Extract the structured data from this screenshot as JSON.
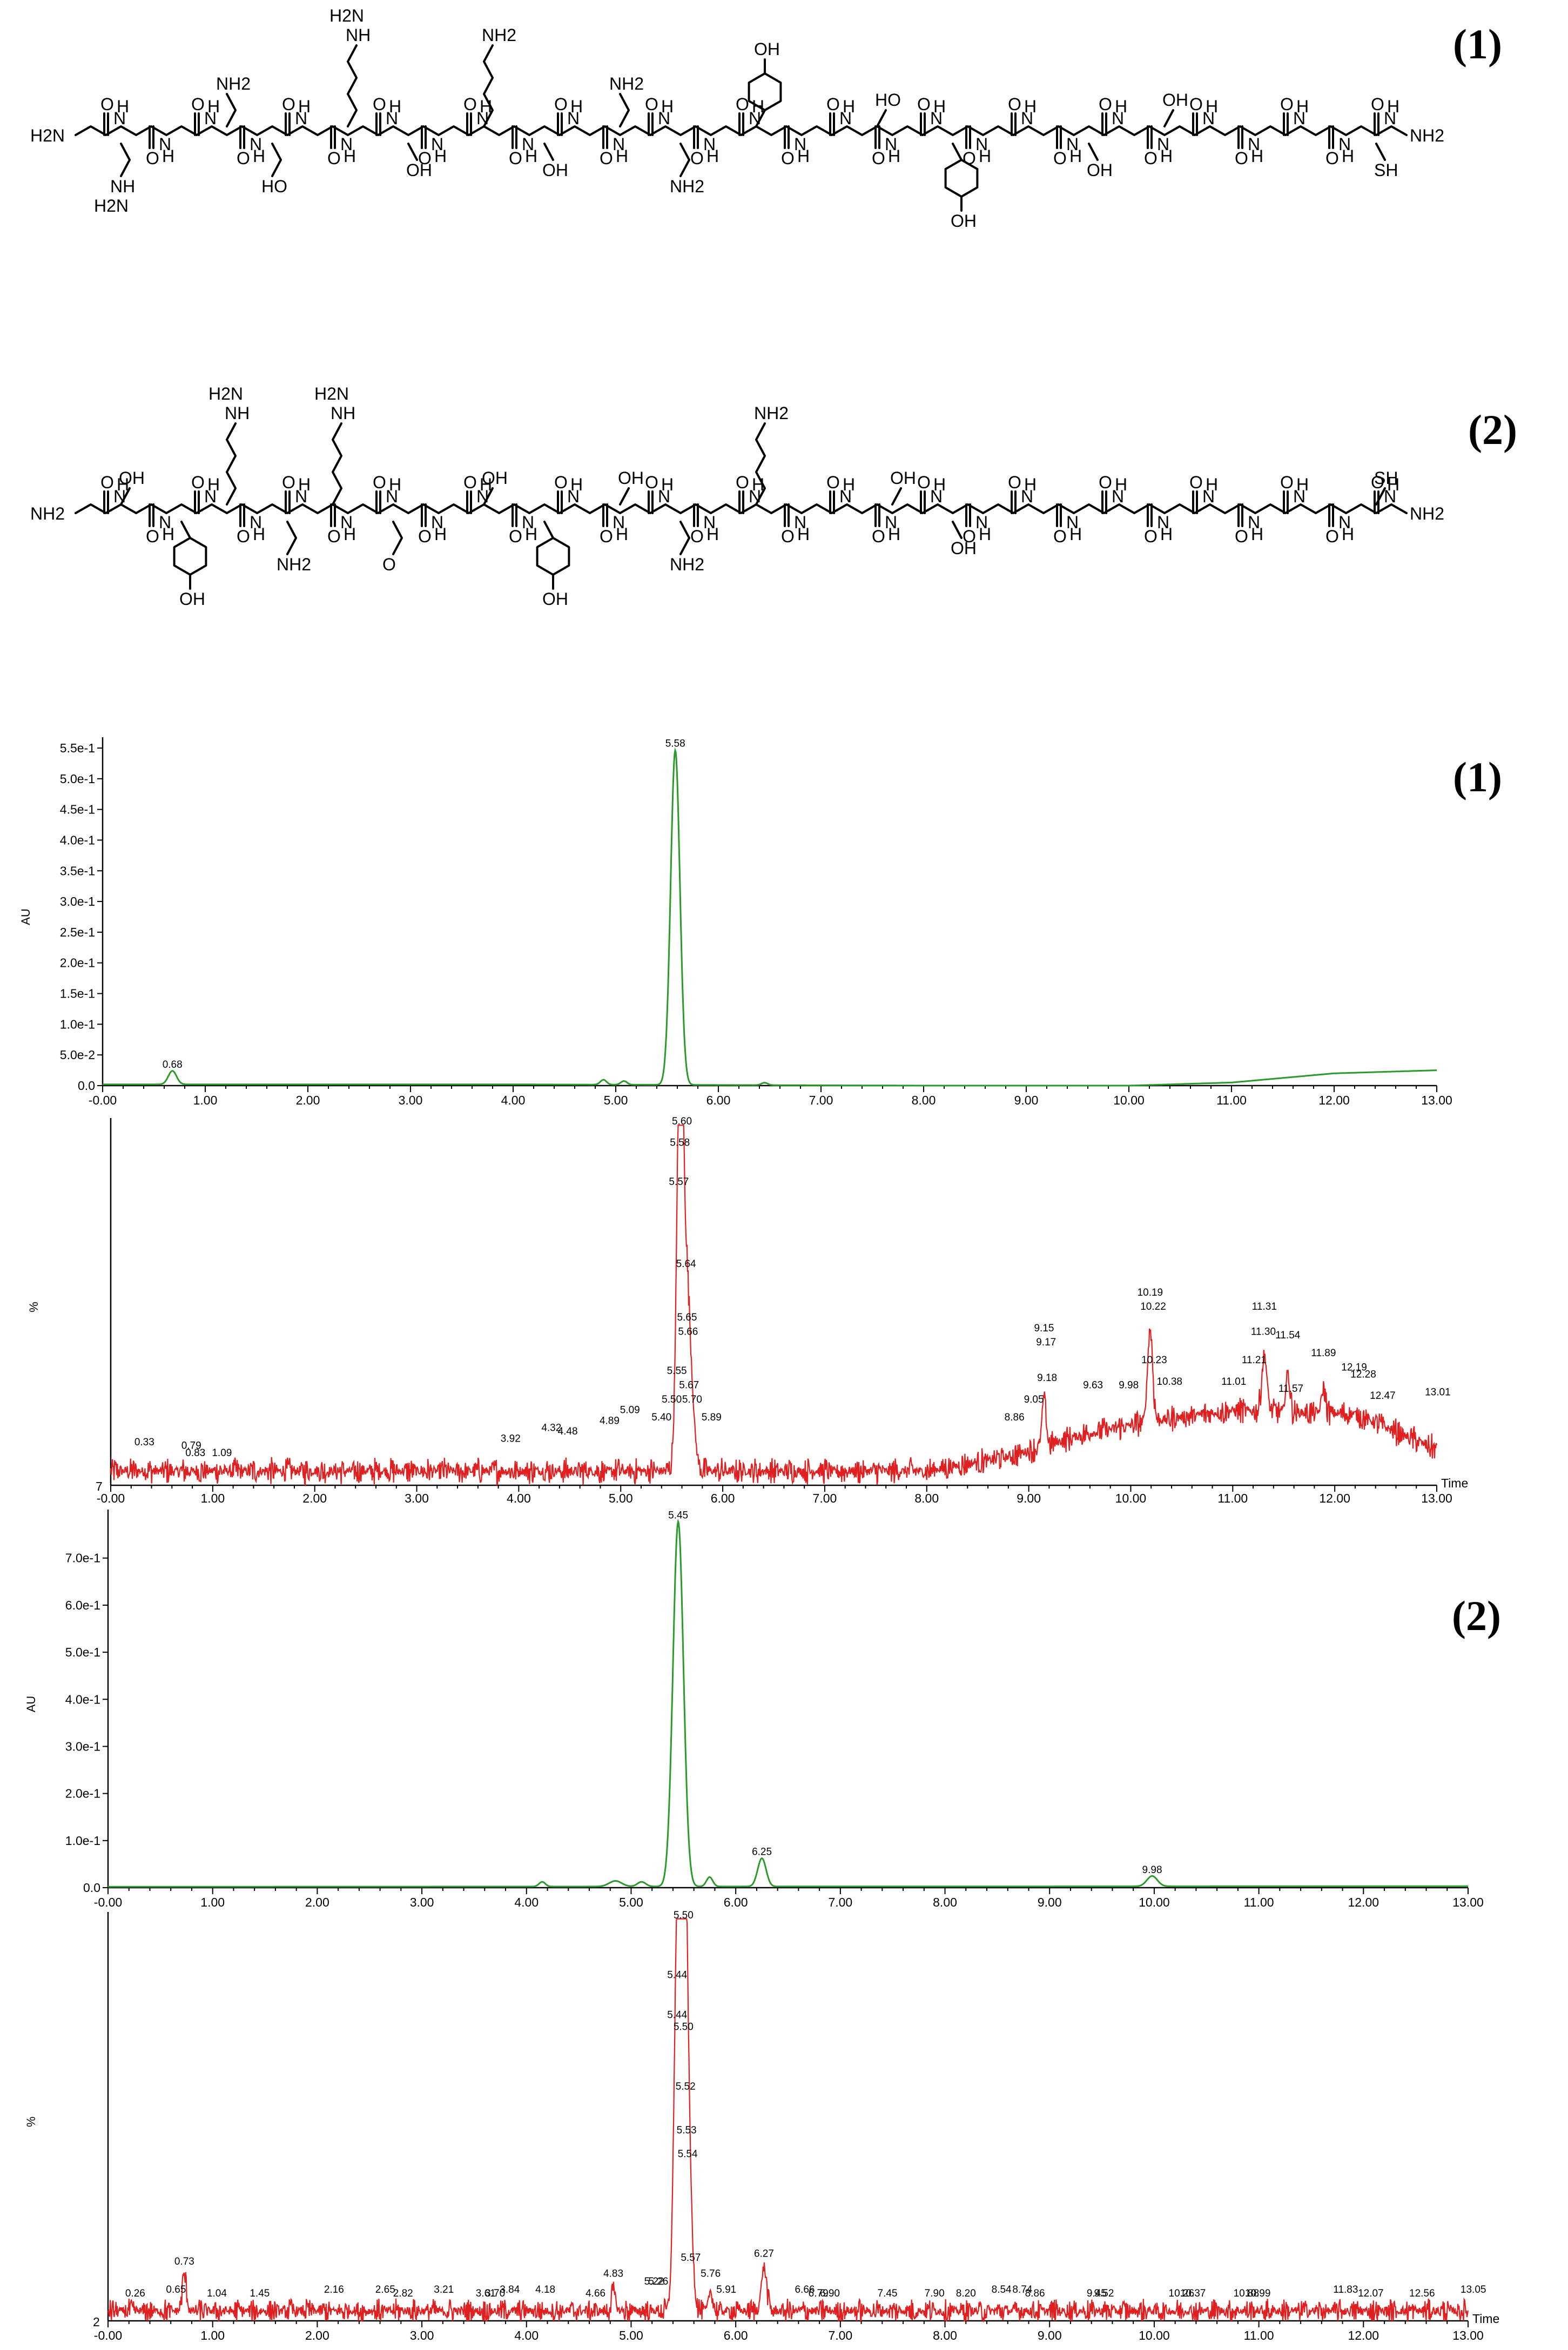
{
  "structures": {
    "label_1": "(1)",
    "label_2": "(2)",
    "atoms": [
      "H2N",
      "NH",
      "HN",
      "NH2",
      "O",
      "OH",
      "HO",
      "SH",
      "H",
      "N"
    ]
  },
  "chart_data": [
    {
      "id": "uv1",
      "type": "line",
      "panel_label": "(1)",
      "color": "#2a9a2a",
      "title": "",
      "xlabel": "",
      "ylabel": "AU",
      "xlim": [
        0,
        13
      ],
      "ylim": [
        0,
        0.55
      ],
      "xticks": [
        "-0.00",
        "1.00",
        "2.00",
        "3.00",
        "4.00",
        "5.00",
        "6.00",
        "7.00",
        "8.00",
        "9.00",
        "10.00",
        "11.00",
        "12.00",
        "13.00"
      ],
      "yticks": [
        "0.0",
        "5.0e-2",
        "1.0e-1",
        "1.5e-1",
        "2.0e-1",
        "2.5e-1",
        "3.0e-1",
        "3.5e-1",
        "4.0e-1",
        "4.5e-1",
        "5.0e-1",
        "5.5e-1"
      ],
      "baseline": [
        [
          0,
          0.002
        ],
        [
          4,
          0.002
        ],
        [
          8,
          0.0
        ],
        [
          10,
          0.0
        ],
        [
          11,
          0.005
        ],
        [
          12,
          0.02
        ],
        [
          13,
          0.025
        ]
      ],
      "peaks": [
        {
          "x": 0.68,
          "y": 0.022,
          "w": 0.04,
          "label": "0.68"
        },
        {
          "x": 4.88,
          "y": 0.008,
          "w": 0.03
        },
        {
          "x": 5.08,
          "y": 0.006,
          "w": 0.03
        },
        {
          "x": 5.58,
          "y": 0.545,
          "w": 0.045,
          "label": "5.58"
        },
        {
          "x": 6.45,
          "y": 0.004,
          "w": 0.03
        }
      ]
    },
    {
      "id": "ms1",
      "type": "line",
      "color": "#e02020",
      "title": "",
      "xlabel": "Time",
      "ylabel": "%",
      "ymin_label": "7",
      "xlim": [
        0,
        13
      ],
      "ylim": [
        0,
        100
      ],
      "xticks": [
        "-0.00",
        "1.00",
        "2.00",
        "3.00",
        "4.00",
        "5.00",
        "6.00",
        "7.00",
        "8.00",
        "9.00",
        "10.00",
        "11.00",
        "12.00",
        "13.00"
      ],
      "noise": 2.5,
      "baseline": [
        [
          0,
          4
        ],
        [
          5,
          4
        ],
        [
          6,
          4
        ],
        [
          8,
          4
        ],
        [
          8.8,
          8
        ],
        [
          9.5,
          14
        ],
        [
          10.2,
          18
        ],
        [
          11,
          21
        ],
        [
          12.2,
          20
        ],
        [
          13,
          10
        ]
      ],
      "peaks": [
        {
          "x": 5.58,
          "y": 100,
          "w": 0.03
        },
        {
          "x": 5.64,
          "y": 55,
          "w": 0.05
        },
        {
          "x": 9.15,
          "y": 14,
          "w": 0.02
        },
        {
          "x": 10.19,
          "y": 26,
          "w": 0.025
        },
        {
          "x": 11.31,
          "y": 16,
          "w": 0.025
        },
        {
          "x": 11.54,
          "y": 11,
          "w": 0.02
        },
        {
          "x": 11.89,
          "y": 7,
          "w": 0.02
        }
      ],
      "labels": [
        {
          "x": 5.6,
          "y": 100,
          "text": "5.60"
        },
        {
          "x": 5.58,
          "y": 94,
          "text": "5.58"
        },
        {
          "x": 5.57,
          "y": 83,
          "text": "5.57"
        },
        {
          "x": 5.64,
          "y": 60,
          "text": "5.64"
        },
        {
          "x": 5.65,
          "y": 45,
          "text": "5.65"
        },
        {
          "x": 5.66,
          "y": 41,
          "text": "5.66"
        },
        {
          "x": 5.55,
          "y": 30,
          "text": "5.55"
        },
        {
          "x": 5.67,
          "y": 26,
          "text": "5.67"
        },
        {
          "x": 5.5,
          "y": 22,
          "text": "5.50"
        },
        {
          "x": 5.7,
          "y": 22,
          "text": "5.70"
        },
        {
          "x": 5.89,
          "y": 17,
          "text": "5.89"
        },
        {
          "x": 5.4,
          "y": 17,
          "text": "5.40"
        },
        {
          "x": 5.09,
          "y": 19,
          "text": "5.09"
        },
        {
          "x": 4.89,
          "y": 16,
          "text": "4.89"
        },
        {
          "x": 4.48,
          "y": 13,
          "text": "4.48"
        },
        {
          "x": 4.32,
          "y": 14,
          "text": "4.32"
        },
        {
          "x": 3.92,
          "y": 11,
          "text": "3.92"
        },
        {
          "x": 0.33,
          "y": 10,
          "text": "0.33"
        },
        {
          "x": 0.79,
          "y": 9,
          "text": "0.79"
        },
        {
          "x": 0.83,
          "y": 7,
          "text": "0.83"
        },
        {
          "x": 1.09,
          "y": 7,
          "text": "1.09"
        },
        {
          "x": 8.86,
          "y": 17,
          "text": "8.86"
        },
        {
          "x": 9.05,
          "y": 22,
          "text": "9.05"
        },
        {
          "x": 9.15,
          "y": 42,
          "text": "9.15"
        },
        {
          "x": 9.17,
          "y": 38,
          "text": "9.17"
        },
        {
          "x": 9.18,
          "y": 28,
          "text": "9.18"
        },
        {
          "x": 9.63,
          "y": 26,
          "text": "9.63"
        },
        {
          "x": 9.98,
          "y": 26,
          "text": "9.98"
        },
        {
          "x": 10.19,
          "y": 52,
          "text": "10.19"
        },
        {
          "x": 10.22,
          "y": 48,
          "text": "10.22"
        },
        {
          "x": 10.23,
          "y": 33,
          "text": "10.23"
        },
        {
          "x": 10.38,
          "y": 27,
          "text": "10.38"
        },
        {
          "x": 11.01,
          "y": 27,
          "text": "11.01"
        },
        {
          "x": 11.21,
          "y": 33,
          "text": "11.21"
        },
        {
          "x": 11.3,
          "y": 41,
          "text": "11.30"
        },
        {
          "x": 11.31,
          "y": 48,
          "text": "11.31"
        },
        {
          "x": 11.54,
          "y": 40,
          "text": "11.54"
        },
        {
          "x": 11.57,
          "y": 25,
          "text": "11.57"
        },
        {
          "x": 11.89,
          "y": 35,
          "text": "11.89"
        },
        {
          "x": 12.19,
          "y": 31,
          "text": "12.19"
        },
        {
          "x": 12.28,
          "y": 29,
          "text": "12.28"
        },
        {
          "x": 12.47,
          "y": 23,
          "text": "12.47"
        },
        {
          "x": 13.01,
          "y": 24,
          "text": "13.01"
        }
      ]
    },
    {
      "id": "uv2",
      "type": "line",
      "panel_label": "(2)",
      "color": "#2a9a2a",
      "title": "",
      "xlabel": "",
      "ylabel": "AU",
      "xlim": [
        0,
        13
      ],
      "ylim": [
        0,
        0.78
      ],
      "xticks": [
        "-0.00",
        "1.00",
        "2.00",
        "3.00",
        "4.00",
        "5.00",
        "6.00",
        "7.00",
        "8.00",
        "9.00",
        "10.00",
        "11.00",
        "12.00",
        "13.00"
      ],
      "yticks": [
        "0.0",
        "1.0e-1",
        "2.0e-1",
        "3.0e-1",
        "4.0e-1",
        "5.0e-1",
        "6.0e-1",
        "7.0e-1"
      ],
      "baseline": [
        [
          0,
          0.002
        ],
        [
          13,
          0.003
        ]
      ],
      "peaks": [
        {
          "x": 4.15,
          "y": 0.01,
          "w": 0.03
        },
        {
          "x": 4.85,
          "y": 0.012,
          "w": 0.06
        },
        {
          "x": 5.1,
          "y": 0.01,
          "w": 0.04
        },
        {
          "x": 5.45,
          "y": 0.775,
          "w": 0.05,
          "label": "5.45"
        },
        {
          "x": 5.75,
          "y": 0.02,
          "w": 0.03
        },
        {
          "x": 6.25,
          "y": 0.06,
          "w": 0.04,
          "label": "6.25"
        },
        {
          "x": 9.98,
          "y": 0.022,
          "w": 0.05,
          "label": "9.98"
        }
      ]
    },
    {
      "id": "ms2",
      "type": "line",
      "color": "#e02020",
      "title": "",
      "xlabel": "Time",
      "ylabel": "%",
      "ymin_label": "2",
      "xlim": [
        0,
        13
      ],
      "ylim": [
        0,
        100
      ],
      "xticks": [
        "-0.00",
        "1.00",
        "2.00",
        "3.00",
        "4.00",
        "5.00",
        "6.00",
        "7.00",
        "8.00",
        "9.00",
        "10.00",
        "11.00",
        "12.00",
        "13.00"
      ],
      "noise": 2.0,
      "baseline": [
        [
          0,
          2.5
        ],
        [
          13,
          2.5
        ]
      ],
      "peaks": [
        {
          "x": 0.73,
          "y": 9,
          "w": 0.02
        },
        {
          "x": 4.83,
          "y": 5,
          "w": 0.02
        },
        {
          "x": 5.44,
          "y": 90,
          "w": 0.03
        },
        {
          "x": 5.5,
          "y": 95,
          "w": 0.03
        },
        {
          "x": 5.53,
          "y": 50,
          "w": 0.04
        },
        {
          "x": 5.76,
          "y": 5,
          "w": 0.02
        },
        {
          "x": 6.27,
          "y": 11,
          "w": 0.025
        }
      ],
      "labels": [
        {
          "x": 5.5,
          "y": 100,
          "text": "5.50"
        },
        {
          "x": 5.44,
          "y": 85,
          "text": "5.44"
        },
        {
          "x": 5.44,
          "y": 75,
          "text": "5.44"
        },
        {
          "x": 5.5,
          "y": 72,
          "text": "5.50"
        },
        {
          "x": 5.52,
          "y": 57,
          "text": "5.52"
        },
        {
          "x": 5.53,
          "y": 46,
          "text": "5.53"
        },
        {
          "x": 5.54,
          "y": 40,
          "text": "5.54"
        },
        {
          "x": 5.57,
          "y": 14,
          "text": "5.57"
        },
        {
          "x": 5.76,
          "y": 10,
          "text": "5.76"
        },
        {
          "x": 5.91,
          "y": 6,
          "text": "5.91"
        },
        {
          "x": 6.27,
          "y": 15,
          "text": "6.27"
        },
        {
          "x": 6.66,
          "y": 6,
          "text": "6.66"
        },
        {
          "x": 6.79,
          "y": 5,
          "text": "6.79"
        },
        {
          "x": 6.9,
          "y": 5,
          "text": "6.90"
        },
        {
          "x": 7.45,
          "y": 5,
          "text": "7.45"
        },
        {
          "x": 7.9,
          "y": 5,
          "text": "7.90"
        },
        {
          "x": 8.2,
          "y": 5,
          "text": "8.20"
        },
        {
          "x": 8.54,
          "y": 6,
          "text": "8.54"
        },
        {
          "x": 8.74,
          "y": 6,
          "text": "8.74"
        },
        {
          "x": 8.86,
          "y": 5,
          "text": "8.86"
        },
        {
          "x": 9.45,
          "y": 5,
          "text": "9.45"
        },
        {
          "x": 9.52,
          "y": 5,
          "text": "9.52"
        },
        {
          "x": 10.26,
          "y": 5,
          "text": "10.26"
        },
        {
          "x": 10.37,
          "y": 5,
          "text": "10.37"
        },
        {
          "x": 10.88,
          "y": 5,
          "text": "10.88"
        },
        {
          "x": 10.99,
          "y": 5,
          "text": "10.99"
        },
        {
          "x": 11.83,
          "y": 6,
          "text": "11.83"
        },
        {
          "x": 12.07,
          "y": 5,
          "text": "12.07"
        },
        {
          "x": 12.56,
          "y": 5,
          "text": "12.56"
        },
        {
          "x": 13.05,
          "y": 6,
          "text": "13.05"
        },
        {
          "x": 0.26,
          "y": 5,
          "text": "0.26"
        },
        {
          "x": 0.65,
          "y": 6,
          "text": "0.65"
        },
        {
          "x": 0.73,
          "y": 13,
          "text": "0.73"
        },
        {
          "x": 1.04,
          "y": 5,
          "text": "1.04"
        },
        {
          "x": 1.45,
          "y": 5,
          "text": "1.45"
        },
        {
          "x": 2.16,
          "y": 6,
          "text": "2.16"
        },
        {
          "x": 2.65,
          "y": 6,
          "text": "2.65"
        },
        {
          "x": 2.82,
          "y": 5,
          "text": "2.82"
        },
        {
          "x": 3.21,
          "y": 6,
          "text": "3.21"
        },
        {
          "x": 3.61,
          "y": 5,
          "text": "3.61"
        },
        {
          "x": 3.7,
          "y": 5,
          "text": "3.70"
        },
        {
          "x": 3.84,
          "y": 6,
          "text": "3.84"
        },
        {
          "x": 4.18,
          "y": 6,
          "text": "4.18"
        },
        {
          "x": 4.66,
          "y": 5,
          "text": "4.66"
        },
        {
          "x": 4.83,
          "y": 10,
          "text": "4.83"
        },
        {
          "x": 5.22,
          "y": 8,
          "text": "5.22"
        },
        {
          "x": 5.26,
          "y": 8,
          "text": "5.26"
        }
      ]
    }
  ]
}
